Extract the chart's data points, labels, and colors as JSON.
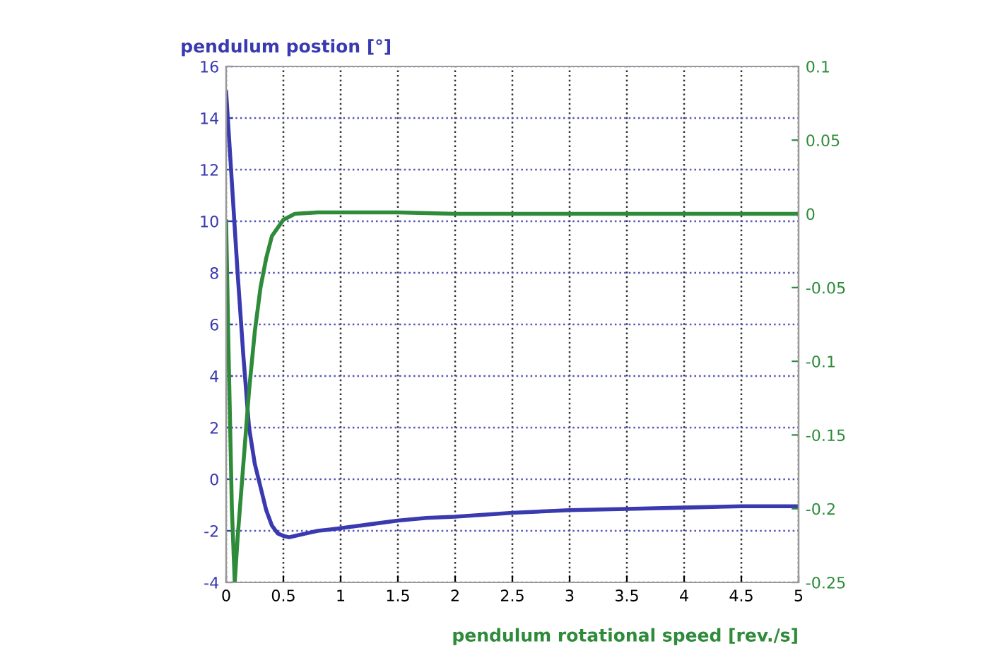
{
  "chart_data": {
    "type": "line",
    "ylabel": "pendulum postion [°]",
    "xlabel": "pendulum rotational speed [rev./s]",
    "xlim": [
      0,
      5
    ],
    "xticks": [
      0,
      0.5,
      1,
      1.5,
      2,
      2.5,
      3,
      3.5,
      4,
      4.5,
      5
    ],
    "ylim": [
      -4,
      16
    ],
    "yticks": [
      -4,
      -2,
      0,
      2,
      4,
      6,
      8,
      10,
      12,
      14,
      16
    ],
    "y2lim": [
      -0.25,
      0.1
    ],
    "y2ticks": [
      -0.25,
      -0.2,
      -0.15,
      -0.1,
      -0.05,
      0,
      0.05,
      0.1
    ],
    "grid": true,
    "line_style": "solid",
    "series": [
      {
        "color": "#3a3ab0",
        "x": [
          0,
          0.05,
          0.1,
          0.15,
          0.2,
          0.25,
          0.3,
          0.35,
          0.4,
          0.45,
          0.5,
          0.55,
          0.6,
          0.7,
          0.8,
          0.9,
          1,
          1.25,
          1.5,
          1.75,
          2,
          2.5,
          3,
          3.5,
          4,
          4.5,
          5
        ],
        "values": [
          15,
          11.5,
          8,
          4.8,
          2,
          0.6,
          -0.3,
          -1.2,
          -1.8,
          -2.1,
          -2.2,
          -2.25,
          -2.2,
          -2.1,
          -2.0,
          -1.95,
          -1.9,
          -1.75,
          -1.6,
          -1.5,
          -1.45,
          -1.3,
          -1.2,
          -1.15,
          -1.1,
          -1.05,
          -1.05
        ]
      },
      {
        "color": "#2e8b3a",
        "axis": "y2",
        "x": [
          0,
          0.02,
          0.05,
          0.075,
          0.1,
          0.15,
          0.2,
          0.25,
          0.3,
          0.35,
          0.4,
          0.5,
          0.6,
          0.8,
          1.5,
          2,
          5
        ],
        "values": [
          -0.005,
          -0.09,
          -0.2,
          -0.25,
          -0.22,
          -0.17,
          -0.12,
          -0.08,
          -0.05,
          -0.03,
          -0.015,
          -0.004,
          0.0,
          0.001,
          0.001,
          0,
          0
        ]
      }
    ]
  }
}
